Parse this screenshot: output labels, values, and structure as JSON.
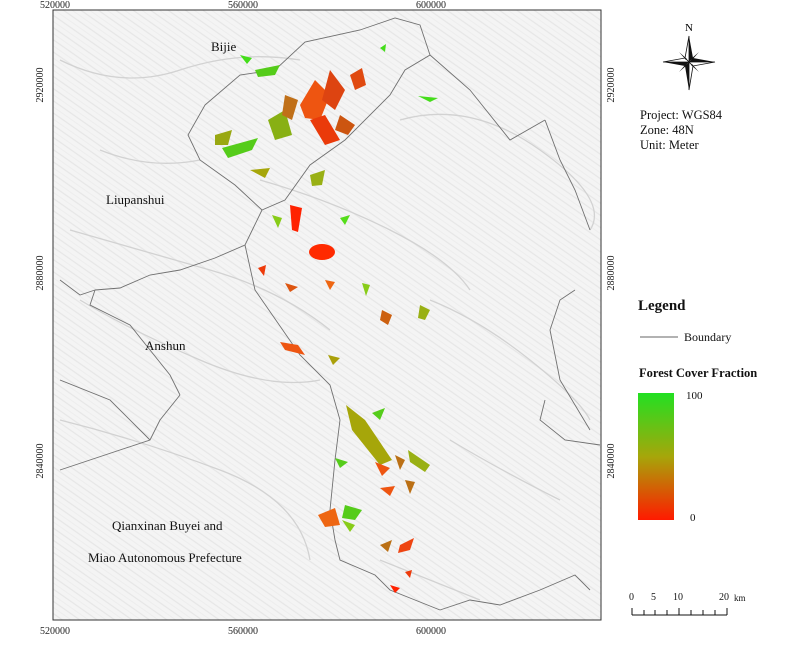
{
  "map": {
    "x_ticks_top": [
      "520000",
      "560000",
      "600000"
    ],
    "x_ticks_bottom": [
      "520000",
      "560000",
      "600000"
    ],
    "y_ticks_left": [
      "2920000",
      "2880000",
      "2840000"
    ],
    "y_ticks_right": [
      "2920000",
      "2880000",
      "2840000"
    ],
    "places": {
      "bijie": "Bijie",
      "liupanshui": "Liupanshui",
      "anshun": "Anshun",
      "qianxinan_line1": "Qianxinan Buyei and",
      "qianxinan_line2": "Miao Autonomous Prefecture"
    }
  },
  "north_arrow": {
    "label": "N"
  },
  "projection": {
    "project": "Project: WGS84",
    "zone": "Zone: 48N",
    "unit": "Unit: Meter"
  },
  "legend": {
    "title": "Legend",
    "boundary_label": "Boundary",
    "ramp_title": "Forest Cover Fraction",
    "ramp_high": "100",
    "ramp_low": "0",
    "colors": {
      "high": "#22e022",
      "mid": "#a6a60a",
      "low": "#ff1a00"
    }
  },
  "scale_bar": {
    "labels": [
      "0",
      "5",
      "10",
      "20"
    ],
    "unit": "km"
  }
}
